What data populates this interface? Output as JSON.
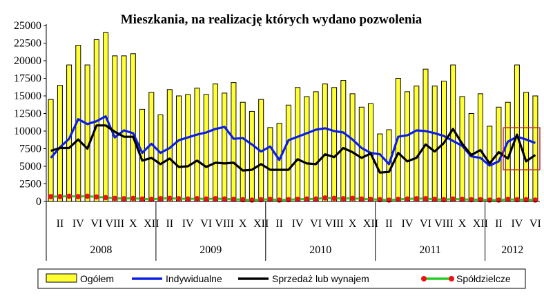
{
  "chart_data": {
    "type": "bar",
    "title": "Mieszkania, na realizację których wydano pozwolenia",
    "ylim": [
      0,
      25000
    ],
    "yticks": [
      "0",
      "2500",
      "5000",
      "7500",
      "10000",
      "12500",
      "15000",
      "17500",
      "20000",
      "22500",
      "25000"
    ],
    "month_labels": [
      "II",
      "IV",
      "VI",
      "VIII",
      "X",
      "XII"
    ],
    "years": [
      "2008",
      "2009",
      "2010",
      "2011",
      "2012"
    ],
    "periods_count": 54,
    "grid": false,
    "legend_placement": "bottom",
    "highlight_box": {
      "from_index": 50,
      "to_index": 53,
      "color": "#c03030"
    },
    "series": [
      {
        "name": "Ogółem",
        "type": "bar",
        "color": "#ffff33",
        "values": [
          14500,
          16500,
          19400,
          22200,
          19400,
          23000,
          24000,
          20700,
          20700,
          21000,
          13100,
          15500,
          12300,
          15900,
          15000,
          15200,
          16100,
          15200,
          16700,
          15400,
          16900,
          14100,
          12800,
          14500,
          10500,
          11100,
          13700,
          16200,
          14900,
          15600,
          16700,
          16200,
          17200,
          15300,
          13400,
          13900,
          9600,
          10200,
          17500,
          15600,
          16400,
          18800,
          16400,
          17100,
          19400,
          14900,
          12500,
          15300,
          10700,
          13400,
          14100,
          19400,
          15500,
          15000
        ]
      },
      {
        "name": "Indywidualne",
        "type": "line",
        "color": "#0a1ee6",
        "values": [
          6200,
          7700,
          8900,
          11700,
          11000,
          11400,
          12100,
          9100,
          10100,
          9700,
          6900,
          8200,
          6900,
          7600,
          8700,
          9100,
          9500,
          9800,
          10300,
          10600,
          8900,
          9000,
          8100,
          7100,
          7800,
          5900,
          8700,
          9200,
          9700,
          10200,
          10400,
          10000,
          9800,
          8800,
          7600,
          6900,
          6700,
          5300,
          9200,
          9400,
          10100,
          10000,
          9700,
          9300,
          8600,
          7900,
          6400,
          6200,
          5100,
          5700,
          8500,
          9200,
          8800,
          8300
        ]
      },
      {
        "name": "Sprzedaż lub wynajem",
        "type": "line",
        "color": "#000000",
        "values": [
          7200,
          7600,
          7600,
          8800,
          7500,
          10800,
          10800,
          9900,
          9200,
          9200,
          5800,
          6200,
          5300,
          6100,
          4900,
          5000,
          5800,
          4900,
          5500,
          5400,
          5500,
          4400,
          4500,
          5300,
          4500,
          4500,
          4500,
          6000,
          5400,
          5300,
          6700,
          6300,
          7600,
          7000,
          6200,
          6800,
          4100,
          4200,
          6900,
          5700,
          6200,
          8100,
          7100,
          8300,
          10300,
          8200,
          6600,
          7300,
          5400,
          7000,
          6100,
          9500,
          5700,
          6600
        ]
      },
      {
        "name": "Spółdzielcze",
        "type": "line",
        "color": "#22cc22",
        "marker_color": "#ee1111",
        "values": [
          700,
          700,
          750,
          700,
          750,
          650,
          550,
          450,
          400,
          450,
          350,
          300,
          400,
          450,
          400,
          350,
          400,
          350,
          400,
          350,
          300,
          250,
          200,
          250,
          300,
          200,
          250,
          300,
          350,
          350,
          500,
          450,
          400,
          450,
          350,
          300,
          250,
          200,
          300,
          350,
          400,
          400,
          300,
          250,
          350,
          300,
          250,
          250,
          200,
          200,
          300,
          250,
          250,
          200
        ]
      }
    ]
  }
}
